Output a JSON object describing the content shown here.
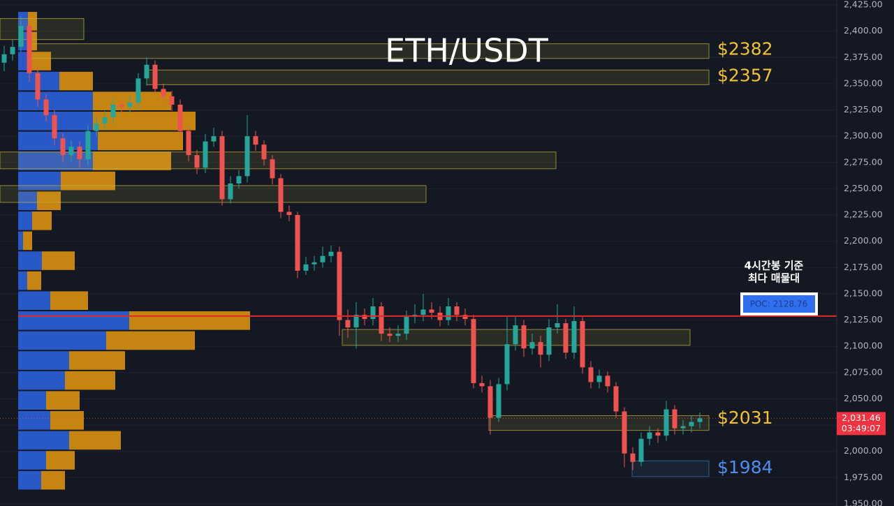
{
  "chart_data": {
    "type": "candlestick",
    "title": "ETH/USDT",
    "up_color": "#26a69a",
    "down_color": "#ef5350",
    "grid": true,
    "ylim": [
      1950,
      2425
    ],
    "yticks": [
      {
        "value": 2425,
        "label": "2,425.00"
      },
      {
        "value": 2400,
        "label": "2,400.00"
      },
      {
        "value": 2375,
        "label": "2,375.00"
      },
      {
        "value": 2350,
        "label": "2,350.00"
      },
      {
        "value": 2325,
        "label": "2,325.00"
      },
      {
        "value": 2300,
        "label": "2,300.00"
      },
      {
        "value": 2275,
        "label": "2,275.00"
      },
      {
        "value": 2250,
        "label": "2,250.00"
      },
      {
        "value": 2225,
        "label": "2,225.00"
      },
      {
        "value": 2200,
        "label": "2,200.00"
      },
      {
        "value": 2175,
        "label": "2,175.00"
      },
      {
        "value": 2150,
        "label": "2,150.00"
      },
      {
        "value": 2125,
        "label": "2,125.00"
      },
      {
        "value": 2100,
        "label": "2,100.00"
      },
      {
        "value": 2075,
        "label": "2,075.00"
      },
      {
        "value": 2050,
        "label": "2,050.00"
      },
      {
        "value": 2025,
        "label": "2,025.00"
      },
      {
        "value": 2000,
        "label": "2,000.00"
      },
      {
        "value": 1975,
        "label": "1,975.00"
      },
      {
        "value": 1950,
        "label": "1,950.00"
      }
    ],
    "open": [
      2370,
      2378,
      2385,
      2405,
      2360,
      2335,
      2320,
      2298,
      2282,
      2290,
      2278,
      2305,
      2312,
      2318,
      2330,
      2328,
      2332,
      2355,
      2368,
      2345,
      2338,
      2330,
      2305,
      2282,
      2270,
      2295,
      2300,
      2240,
      2255,
      2262,
      2300,
      2292,
      2278,
      2260,
      2228,
      2225,
      2172,
      2178,
      2180,
      2186,
      2190,
      2125,
      2118,
      2130,
      2126,
      2138,
      2112,
      2110,
      2112,
      2128,
      2130,
      2135,
      2132,
      2125,
      2138,
      2130,
      2126,
      2065,
      2062,
      2032,
      2064,
      2102,
      2120,
      2098,
      2104,
      2092,
      2118,
      2122,
      2094,
      2124,
      2080,
      2066,
      2072,
      2062,
      2038,
      1998,
      1990,
      2012,
      2018,
      2015,
      2040,
      2022,
      2024,
      2028
    ],
    "high": [
      2386,
      2392,
      2414,
      2410,
      2366,
      2340,
      2325,
      2303,
      2296,
      2295,
      2310,
      2318,
      2324,
      2336,
      2334,
      2338,
      2360,
      2375,
      2372,
      2350,
      2343,
      2335,
      2310,
      2287,
      2302,
      2308,
      2305,
      2262,
      2268,
      2320,
      2305,
      2296,
      2282,
      2264,
      2234,
      2228,
      2185,
      2186,
      2195,
      2196,
      2195,
      2135,
      2142,
      2136,
      2146,
      2142,
      2118,
      2120,
      2134,
      2140,
      2150,
      2142,
      2138,
      2146,
      2142,
      2136,
      2130,
      2072,
      2068,
      2070,
      2128,
      2128,
      2125,
      2112,
      2110,
      2126,
      2140,
      2126,
      2138,
      2128,
      2086,
      2078,
      2076,
      2066,
      2042,
      2004,
      2018,
      2024,
      2022,
      2048,
      2044,
      2030,
      2034,
      2037
    ],
    "low": [
      2362,
      2372,
      2380,
      2352,
      2328,
      2314,
      2292,
      2275,
      2276,
      2270,
      2272,
      2300,
      2306,
      2312,
      2322,
      2322,
      2326,
      2348,
      2340,
      2332,
      2324,
      2298,
      2276,
      2264,
      2265,
      2290,
      2234,
      2236,
      2250,
      2256,
      2286,
      2272,
      2254,
      2222,
      2219,
      2165,
      2168,
      2172,
      2175,
      2180,
      2110,
      2108,
      2098,
      2120,
      2120,
      2105,
      2104,
      2104,
      2106,
      2122,
      2124,
      2126,
      2119,
      2120,
      2124,
      2120,
      2060,
      2056,
      2016,
      2028,
      2058,
      2096,
      2090,
      2092,
      2080,
      2086,
      2112,
      2088,
      2088,
      2074,
      2060,
      2060,
      2056,
      2032,
      1985,
      1982,
      1986,
      2006,
      2008,
      2010,
      2016,
      2016,
      2018,
      2022
    ],
    "close": [
      2378,
      2385,
      2405,
      2360,
      2335,
      2320,
      2298,
      2282,
      2290,
      2278,
      2305,
      2312,
      2318,
      2330,
      2328,
      2332,
      2355,
      2368,
      2345,
      2338,
      2330,
      2305,
      2282,
      2270,
      2295,
      2300,
      2240,
      2255,
      2262,
      2300,
      2292,
      2278,
      2260,
      2228,
      2225,
      2172,
      2178,
      2180,
      2186,
      2190,
      2125,
      2118,
      2130,
      2126,
      2138,
      2112,
      2110,
      2112,
      2128,
      2130,
      2135,
      2132,
      2125,
      2138,
      2130,
      2126,
      2065,
      2062,
      2032,
      2064,
      2102,
      2120,
      2098,
      2104,
      2092,
      2118,
      2122,
      2094,
      2124,
      2080,
      2066,
      2072,
      2062,
      2038,
      1998,
      1990,
      2012,
      2018,
      2015,
      2040,
      2022,
      2024,
      2028,
      2031.46
    ],
    "volume_profile": {
      "level_low": [
        2400,
        2381,
        2362,
        2343,
        2324,
        2305,
        2286,
        2267,
        2248,
        2229,
        2210,
        2191,
        2172,
        2153,
        2134,
        2115,
        2096,
        2077,
        2058,
        2039,
        2020,
        2001,
        1982,
        1963
      ],
      "buy": [
        14,
        14,
        19,
        59,
        107,
        107,
        114,
        107,
        61,
        27,
        20,
        7,
        34,
        13,
        46,
        159,
        126,
        73,
        67,
        40,
        46,
        73,
        40,
        33
      ],
      "sell": [
        13,
        13,
        28,
        48,
        112,
        147,
        122,
        112,
        78,
        34,
        28,
        13,
        47,
        20,
        54,
        173,
        127,
        80,
        72,
        48,
        48,
        74,
        41,
        34
      ],
      "buy_color": "#2b5fd9",
      "sell_color": "#d9900f"
    },
    "zones": [
      {
        "low": 2374,
        "high": 2388,
        "color": "#c9b33c"
      },
      {
        "low": 2349,
        "high": 2363,
        "color": "#c9b33c"
      },
      {
        "low": 2392,
        "high": 2412,
        "color": "#c9b33c"
      },
      {
        "low": 2269,
        "high": 2285,
        "color": "#c9b33c"
      },
      {
        "low": 2237,
        "high": 2253,
        "color": "#c9b33c"
      },
      {
        "low": 2101,
        "high": 2116,
        "color": "#c9b33c"
      },
      {
        "low": 2020,
        "high": 2034,
        "color": "#c9b33c"
      },
      {
        "low": 1976,
        "high": 1991,
        "color": "#3f79b0"
      }
    ],
    "price_labels": [
      {
        "value": 2382,
        "label": "$2382",
        "color": "#f2c230"
      },
      {
        "value": 2357,
        "label": "$2357",
        "color": "#f2c230"
      },
      {
        "value": 2031,
        "label": "$2031",
        "color": "#f2c230"
      },
      {
        "value": 1984,
        "label": "$1984",
        "color": "#4f8ef0"
      }
    ],
    "poc": {
      "value": 2128.76,
      "label": "POC: 2128.76",
      "color": "#e02a2a"
    },
    "annotation": [
      "4시간봉 기준",
      "최다 매물대"
    ],
    "last_price": {
      "value": 2031.46,
      "label": "2,031.46"
    },
    "countdown": "03:49:07"
  }
}
